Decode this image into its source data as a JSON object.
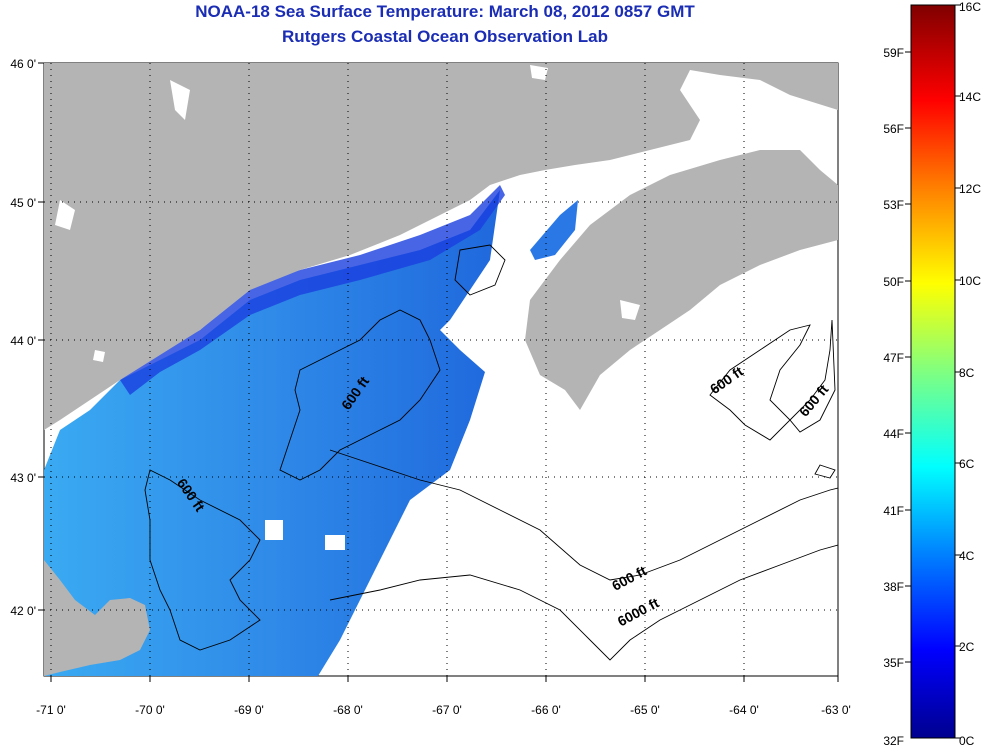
{
  "title": {
    "line1": "NOAA-18 Sea Surface Temperature:  March 08, 2012 0857 GMT",
    "line2": "Rutgers Coastal Ocean Observation Lab"
  },
  "axes": {
    "x_ticks": [
      "-71 0'",
      "-70 0'",
      "-69 0'",
      "-68 0'",
      "-67 0'",
      "-66 0'",
      "-65 0'",
      "-64 0'",
      "-63 0'"
    ],
    "y_ticks": [
      "46 0'",
      "45 0'",
      "44 0'",
      "43 0'",
      "42 0'"
    ],
    "lon_range": [
      -71,
      -63
    ],
    "lat_range": [
      41.5,
      46
    ]
  },
  "contours": {
    "labels": [
      "600 ft",
      "600 ft",
      "600 ft",
      "600 ft",
      "600 ft",
      "6000 ft"
    ]
  },
  "colorbar": {
    "celsius": [
      "16C",
      "14C",
      "12C",
      "10C",
      "8C",
      "6C",
      "4C",
      "2C",
      "0C"
    ],
    "fahrenheit": [
      "59F",
      "56F",
      "53F",
      "50F",
      "47F",
      "44F",
      "41F",
      "38F",
      "35F",
      "32F"
    ],
    "range_c": [
      0,
      16
    ]
  },
  "colors": {
    "land": "#b4b4b4",
    "title": "#1a2db4",
    "water_cold": "#1e6be0",
    "water_warm": "#3cb0f0"
  }
}
